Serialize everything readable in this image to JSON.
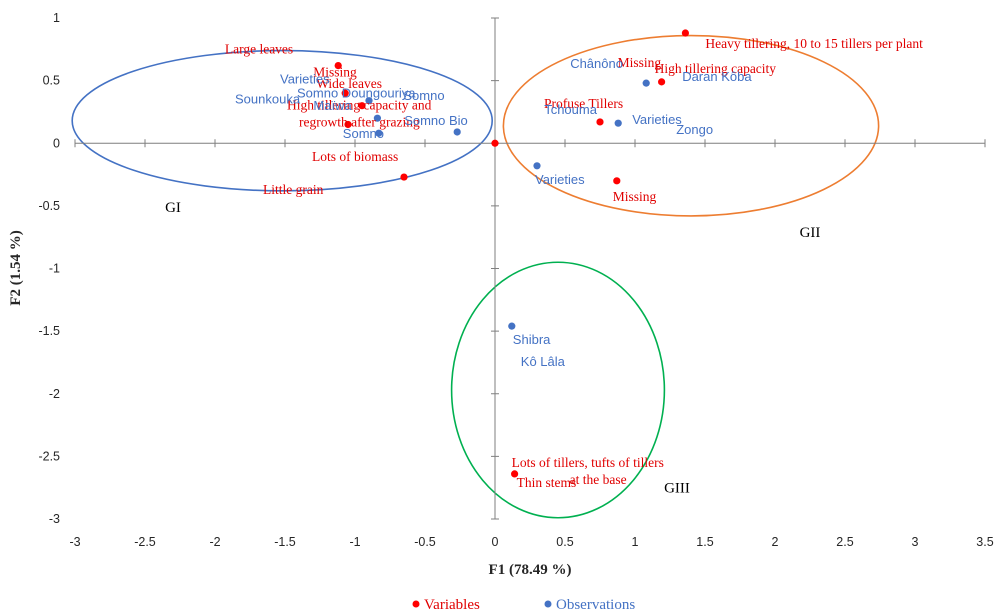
{
  "chart_data": {
    "type": "scatter",
    "title": "",
    "xlabel": "F1 (78.49 %)",
    "ylabel": "F2 (1.54 %)",
    "xlim": [
      -3,
      3.5
    ],
    "ylim": [
      -3,
      1
    ],
    "x_ticks": [
      "-3",
      "-2.5",
      "-2",
      "-1.5",
      "-1",
      "-0.5",
      "0",
      "0.5",
      "1",
      "1.5",
      "2",
      "2.5",
      "3",
      "3.5"
    ],
    "y_ticks": [
      "1",
      "0.5",
      "0",
      "-0.5",
      "-1",
      "-1.5",
      "-2",
      "-2.5",
      "-3"
    ],
    "grid": false,
    "legend_position": "bottom",
    "colors": {
      "variables": "#ff0000",
      "observations": "#4472c4",
      "GI": "#4472c4",
      "GII": "#ed7d31",
      "GIII": "#00b050"
    },
    "series": [
      {
        "name": "Variables",
        "points": [
          {
            "x": 1.36,
            "y": 0.88,
            "label": "Heavy tillering, 10 to 15 tillers per plant"
          },
          {
            "x": 1.19,
            "y": 0.49,
            "label": "High tillering capacity"
          },
          {
            "x": 1.19,
            "y": 0.49,
            "label": "Missing"
          },
          {
            "x": 0.75,
            "y": 0.17,
            "label": "Profuse Tillers"
          },
          {
            "x": 0.87,
            "y": -0.3,
            "label": "Missing"
          },
          {
            "x": 0.0,
            "y": 0.0,
            "label": ""
          },
          {
            "x": -1.12,
            "y": 0.62,
            "label": "Large leaves"
          },
          {
            "x": -1.12,
            "y": 0.62,
            "label": "Missing"
          },
          {
            "x": -1.07,
            "y": 0.4,
            "label": "Wide leaves"
          },
          {
            "x": -0.95,
            "y": 0.3,
            "label": "High tillering capacity and regrowth after grazing"
          },
          {
            "x": -1.05,
            "y": 0.15,
            "label": ""
          },
          {
            "x": -0.65,
            "y": -0.27,
            "label": "Lots of biomass"
          },
          {
            "x": -0.65,
            "y": -0.27,
            "label": "Little grain"
          },
          {
            "x": 0.14,
            "y": -2.64,
            "label": "Lots of tillers, tufts of tillers at the base"
          },
          {
            "x": 0.14,
            "y": -2.64,
            "label": "Thin stems"
          }
        ]
      },
      {
        "name": "Observations",
        "points": [
          {
            "x": 1.08,
            "y": 0.48,
            "label": "Chânôno"
          },
          {
            "x": 1.08,
            "y": 0.48,
            "label": "Daran Kôba"
          },
          {
            "x": 0.88,
            "y": 0.16,
            "label": "Tchouma"
          },
          {
            "x": 0.88,
            "y": 0.16,
            "label": "Varieties"
          },
          {
            "x": 0.88,
            "y": 0.16,
            "label": "Zongo"
          },
          {
            "x": 0.3,
            "y": -0.18,
            "label": "Varieties"
          },
          {
            "x": -0.9,
            "y": 0.34,
            "label": "Varieties"
          },
          {
            "x": -0.9,
            "y": 0.34,
            "label": "Somno Doungouriya"
          },
          {
            "x": -0.9,
            "y": 0.34,
            "label": "Sounkouka"
          },
          {
            "x": -0.84,
            "y": 0.2,
            "label": "Somno"
          },
          {
            "x": -0.84,
            "y": 0.2,
            "label": "Maïwa"
          },
          {
            "x": -0.83,
            "y": 0.08,
            "label": "Somno"
          },
          {
            "x": -0.27,
            "y": 0.09,
            "label": "Somno Bio"
          },
          {
            "x": 0.12,
            "y": -1.46,
            "label": "Shibra"
          },
          {
            "x": 0.12,
            "y": -1.46,
            "label": "Kô Lâla"
          }
        ]
      }
    ],
    "groups": [
      {
        "name": "GI",
        "cx": -1.52,
        "cy": 0.18,
        "rx": 1.5,
        "ry": 0.56,
        "color": "#4472c4"
      },
      {
        "name": "GII",
        "cx": 1.4,
        "cy": 0.14,
        "rx": 1.34,
        "ry": 0.72,
        "color": "#ed7d31"
      },
      {
        "name": "GIII",
        "cx": 0.45,
        "cy": -1.97,
        "rx": 0.76,
        "ry": 1.02,
        "color": "#00b050"
      }
    ]
  },
  "legend": {
    "variables_label": "Variables",
    "observations_label": "Observations"
  }
}
